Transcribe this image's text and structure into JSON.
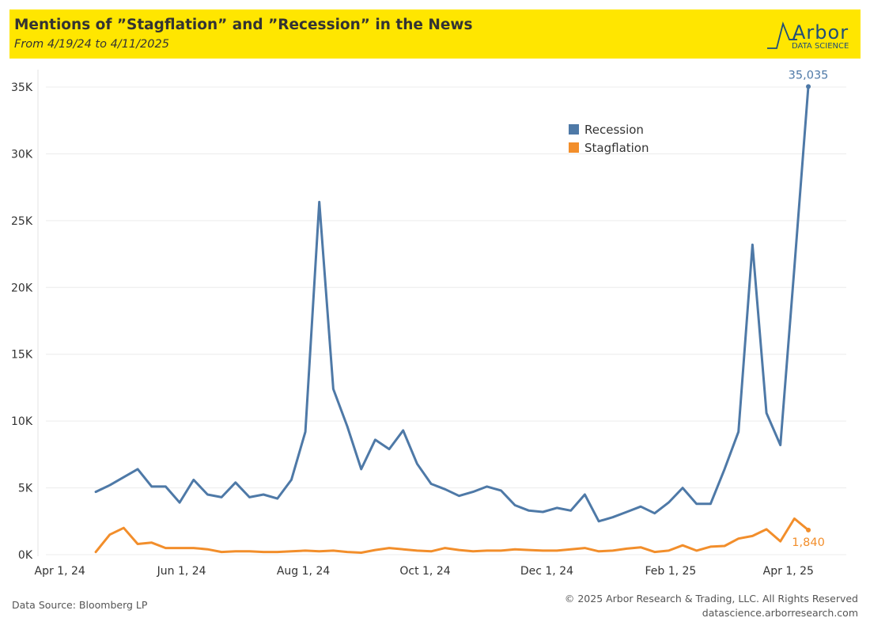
{
  "header": {
    "title": "Mentions of ”Stagflation” and ”Recession” in the News",
    "subtitle": "From 4/19/24 to 4/11/2025",
    "background": "#ffe600"
  },
  "logo": {
    "word": "Arbor",
    "sub": "DATA SCIENCE",
    "color": "#1f4e79"
  },
  "footer": {
    "source": "Data Source: Bloomberg LP",
    "copyright": "© 2025 Arbor Research & Trading, LLC. All Rights Reserved",
    "site": "datascience.arborresearch.com"
  },
  "chart_data": {
    "type": "line",
    "x_start": "2024-04-19",
    "x_step_days": 7,
    "xlim": [
      "2024-03-25",
      "2025-04-30"
    ],
    "ylim": [
      0,
      35000
    ],
    "x_ticks": [
      {
        "date": "2024-04-01",
        "label": "Apr 1, 24"
      },
      {
        "date": "2024-06-01",
        "label": "Jun 1, 24"
      },
      {
        "date": "2024-08-01",
        "label": "Aug 1, 24"
      },
      {
        "date": "2024-10-01",
        "label": "Oct 1, 24"
      },
      {
        "date": "2024-12-01",
        "label": "Dec 1, 24"
      },
      {
        "date": "2025-02-01",
        "label": "Feb 1, 25"
      },
      {
        "date": "2025-04-01",
        "label": "Apr 1, 25"
      }
    ],
    "y_ticks": [
      {
        "value": 0,
        "label": "0K"
      },
      {
        "value": 5000,
        "label": "5K"
      },
      {
        "value": 10000,
        "label": "10K"
      },
      {
        "value": 15000,
        "label": "15K"
      },
      {
        "value": 20000,
        "label": "20K"
      },
      {
        "value": 25000,
        "label": "25K"
      },
      {
        "value": 30000,
        "label": "30K"
      },
      {
        "value": 35000,
        "label": "35K"
      }
    ],
    "grid": true,
    "legend_position": "top-right",
    "series": [
      {
        "name": "Recession",
        "color": "#4e79a7",
        "end_label": "35,035",
        "values": [
          4700,
          5200,
          5800,
          6400,
          5100,
          5100,
          3900,
          5600,
          4500,
          4300,
          5400,
          4300,
          4500,
          4200,
          5600,
          9200,
          26400,
          12400,
          9600,
          6400,
          8600,
          7900,
          9300,
          6800,
          5300,
          4900,
          4400,
          4700,
          5100,
          4800,
          3700,
          3300,
          3200,
          3500,
          3300,
          4500,
          2500,
          2800,
          3200,
          3600,
          3100,
          3900,
          5000,
          3800,
          3800,
          6400,
          9200,
          23200,
          10600,
          8200,
          21500,
          35035
        ]
      },
      {
        "name": "Stagflation",
        "color": "#f28e2b",
        "end_label": "1,840",
        "values": [
          200,
          1500,
          2000,
          800,
          900,
          500,
          500,
          500,
          400,
          200,
          250,
          250,
          200,
          200,
          250,
          300,
          250,
          300,
          200,
          150,
          350,
          500,
          400,
          300,
          250,
          500,
          350,
          250,
          300,
          300,
          400,
          350,
          300,
          300,
          400,
          500,
          250,
          300,
          450,
          550,
          200,
          300,
          700,
          300,
          600,
          650,
          1200,
          1400,
          1900,
          1000,
          2700,
          1840
        ]
      }
    ]
  }
}
